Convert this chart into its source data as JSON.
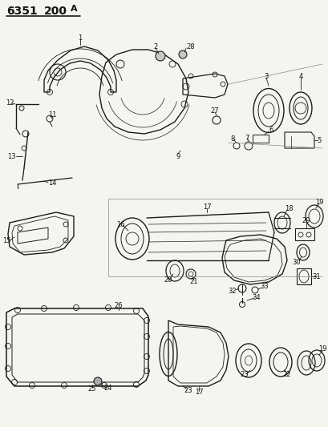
{
  "title_part1": "6351",
  "title_part2": "200",
  "title_part3": "A",
  "bg_color": "#f5f5f0",
  "fig_width": 4.1,
  "fig_height": 5.33,
  "dpi": 100,
  "line_color": "#1a1a1a",
  "label_fontsize": 6.0,
  "title_fontsize": 10
}
